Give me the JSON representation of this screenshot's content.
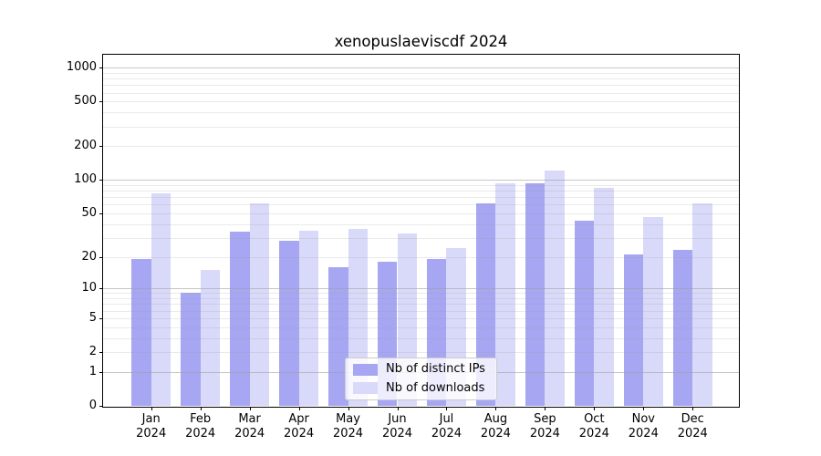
{
  "title": "xenopuslaeviscdf 2024",
  "chart_data": {
    "type": "bar",
    "title": "xenopuslaeviscdf 2024",
    "categories": [
      "Jan 2024",
      "Feb 2024",
      "Mar 2024",
      "Apr 2024",
      "May 2024",
      "Jun 2024",
      "Jul 2024",
      "Aug 2024",
      "Sep 2024",
      "Oct 2024",
      "Nov 2024",
      "Dec 2024"
    ],
    "series": [
      {
        "name": "Nb of distinct IPs",
        "color": "#a6a6f3",
        "values": [
          19,
          9,
          34,
          28,
          16,
          18,
          19,
          62,
          93,
          43,
          21,
          23
        ]
      },
      {
        "name": "Nb of downloads",
        "color": "#d9d9f9",
        "values": [
          76,
          15,
          62,
          35,
          36,
          33,
          24,
          93,
          121,
          85,
          46,
          61
        ]
      }
    ],
    "xlabel": "",
    "ylabel": "",
    "yscale": "log10(value+1), zero at baseline",
    "ylim": [
      0,
      1300
    ],
    "yticks": [
      0,
      1,
      2,
      5,
      10,
      20,
      50,
      100,
      200,
      500,
      1000
    ],
    "ytick_major_gridlines": [
      1,
      10,
      100,
      1000
    ],
    "grid": "horizontal major+minor gridlines drawn over bars",
    "legend_position": "lower center inside plot",
    "colors": {
      "distinct_ips_bar": "#a6a6f3",
      "downloads_bar": "#d9d9f9",
      "major_grid": "#c6c6c6",
      "minor_grid": "#ededed",
      "axis": "#000000",
      "background": "#ffffff"
    }
  }
}
